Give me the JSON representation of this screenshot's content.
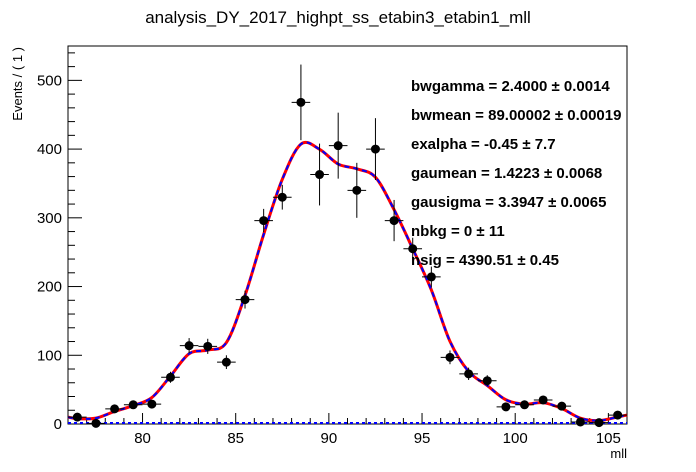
{
  "chart_data": {
    "type": "scatter",
    "title": "analysis_DY_2017_highpt_ss_etabin3_etabin1_mll",
    "xlabel": "mll",
    "ylabel": "Events / ( 1 )",
    "xlim": [
      76,
      106
    ],
    "ylim": [
      0,
      550
    ],
    "x_ticks": [
      "80",
      "85",
      "90",
      "95",
      "100",
      "105"
    ],
    "y_ticks": [
      "0",
      "100",
      "200",
      "300",
      "400",
      "500"
    ],
    "bin_width": 1,
    "points": [
      {
        "x": 76.5,
        "y": 10,
        "err": 3
      },
      {
        "x": 77.5,
        "y": 1,
        "err": 1
      },
      {
        "x": 78.5,
        "y": 22,
        "err": 5
      },
      {
        "x": 79.5,
        "y": 28,
        "err": 5
      },
      {
        "x": 80.5,
        "y": 29,
        "err": 5
      },
      {
        "x": 81.5,
        "y": 68,
        "err": 8
      },
      {
        "x": 82.5,
        "y": 114,
        "err": 11
      },
      {
        "x": 83.5,
        "y": 113,
        "err": 11
      },
      {
        "x": 84.5,
        "y": 90,
        "err": 10
      },
      {
        "x": 85.5,
        "y": 181,
        "err": 13
      },
      {
        "x": 86.5,
        "y": 296,
        "err": 17
      },
      {
        "x": 87.5,
        "y": 330,
        "err": 18
      },
      {
        "x": 88.5,
        "y": 468,
        "err": 55
      },
      {
        "x": 89.5,
        "y": 363,
        "err": 45
      },
      {
        "x": 90.5,
        "y": 405,
        "err": 48
      },
      {
        "x": 91.5,
        "y": 340,
        "err": 40
      },
      {
        "x": 92.5,
        "y": 400,
        "err": 45
      },
      {
        "x": 93.5,
        "y": 296,
        "err": 30
      },
      {
        "x": 94.5,
        "y": 255,
        "err": 16
      },
      {
        "x": 95.5,
        "y": 214,
        "err": 15
      },
      {
        "x": 96.5,
        "y": 97,
        "err": 10
      },
      {
        "x": 97.5,
        "y": 73,
        "err": 9
      },
      {
        "x": 98.5,
        "y": 63,
        "err": 8
      },
      {
        "x": 99.5,
        "y": 25,
        "err": 5
      },
      {
        "x": 100.5,
        "y": 28,
        "err": 5
      },
      {
        "x": 101.5,
        "y": 35,
        "err": 6
      },
      {
        "x": 102.5,
        "y": 26,
        "err": 5
      },
      {
        "x": 103.5,
        "y": 3,
        "err": 2
      },
      {
        "x": 104.5,
        "y": 2,
        "err": 2
      },
      {
        "x": 105.5,
        "y": 13,
        "err": 4
      }
    ],
    "curves": [
      {
        "color": "#ff0000",
        "style": "solid"
      },
      {
        "color": "#0000ff",
        "style": "dashed"
      }
    ],
    "background_color": "#0000ff",
    "fit_params": [
      "bwgamma =  2.4000   ± 0.0014",
      "bwmean =  89.00002   ± 0.00019",
      "exalpha = -0.45   ± 7.7",
      "gaumean =  1.4223   ± 0.0068",
      "gausigma =  3.3947   ± 0.0065",
      "nbkg =  0   ± 11",
      "nsig =  4390.51   ± 0.45"
    ],
    "grid": false,
    "legend": "none"
  }
}
